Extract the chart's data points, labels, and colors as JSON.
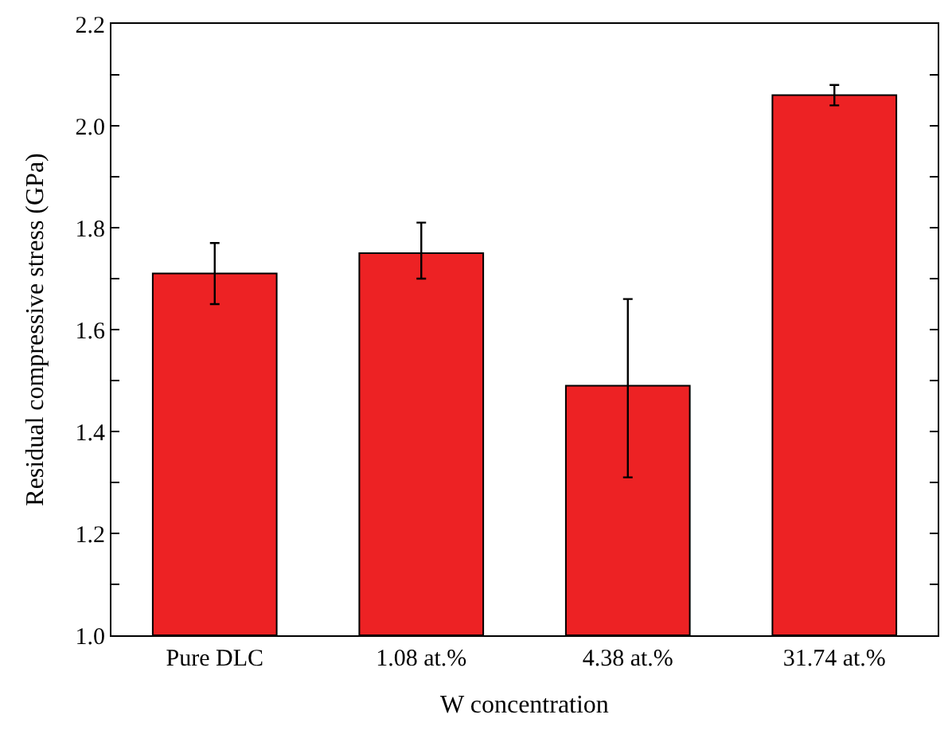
{
  "chart_data": {
    "type": "bar",
    "xlabel": "W concentration",
    "ylabel": "Residual compressive stress (GPa)",
    "categories": [
      "Pure DLC",
      "1.08 at.%",
      "4.38 at.%",
      "31.74 at.%"
    ],
    "values": [
      1.71,
      1.75,
      1.49,
      2.06
    ],
    "errors": [
      [
        1.65,
        1.77
      ],
      [
        1.7,
        1.81
      ],
      [
        1.31,
        1.66
      ],
      [
        2.04,
        2.08
      ]
    ],
    "color": "#ed2224",
    "ylim": [
      1.0,
      2.2
    ],
    "yticks": [
      {
        "value": 1.0,
        "label": "1.0"
      },
      {
        "value": 1.1,
        "label": null
      },
      {
        "value": 1.2,
        "label": "1.2"
      },
      {
        "value": 1.3,
        "label": null
      },
      {
        "value": 1.4,
        "label": "1.4"
      },
      {
        "value": 1.5,
        "label": null
      },
      {
        "value": 1.6,
        "label": "1.6"
      },
      {
        "value": 1.7,
        "label": null
      },
      {
        "value": 1.8,
        "label": "1.8"
      },
      {
        "value": 1.9,
        "label": null
      },
      {
        "value": 2.0,
        "label": "2.0"
      },
      {
        "value": 2.1,
        "label": null
      },
      {
        "value": 2.2,
        "label": "2.2"
      }
    ]
  }
}
